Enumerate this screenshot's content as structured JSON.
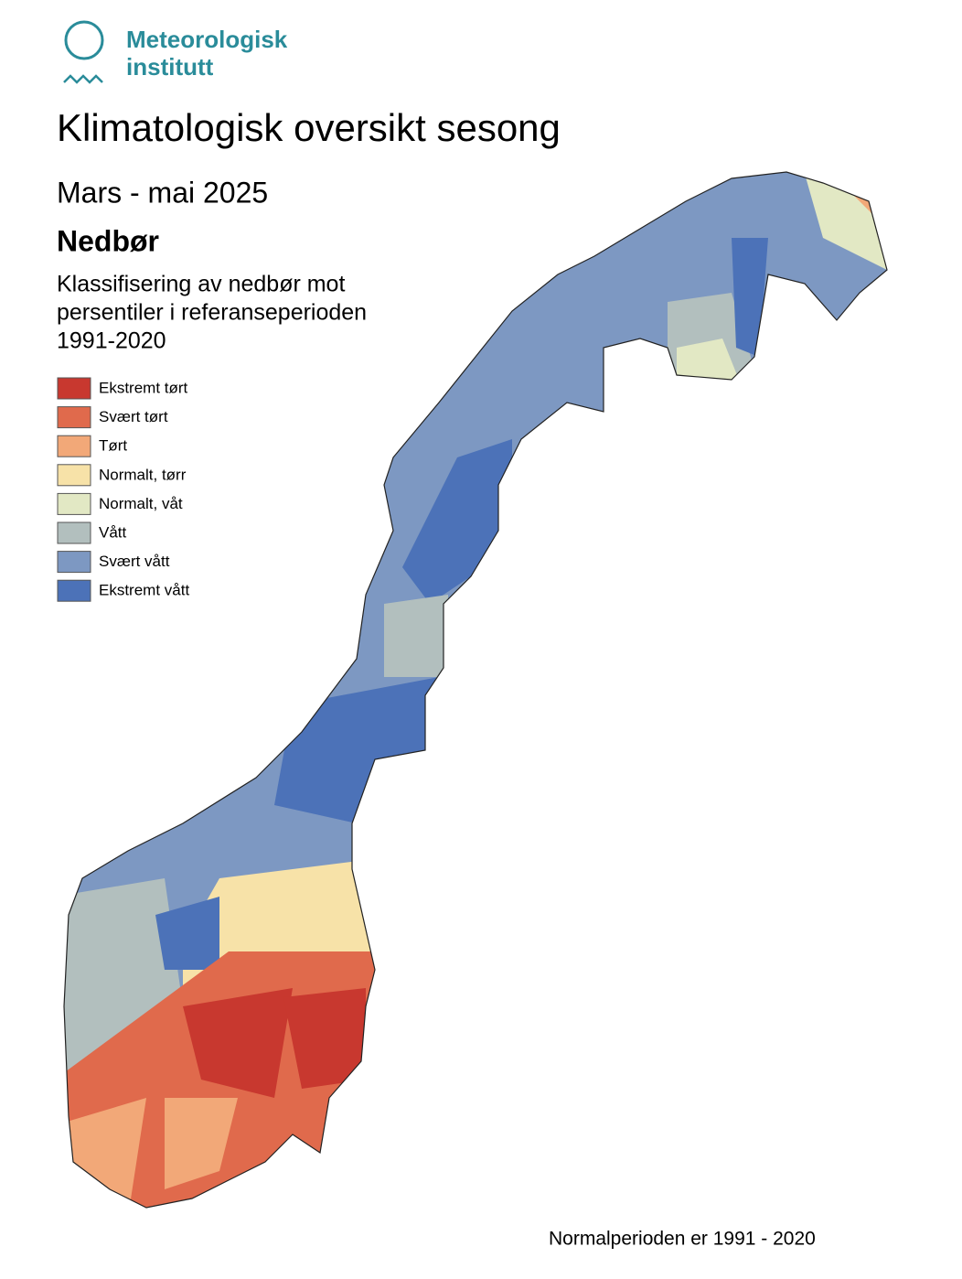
{
  "logo": {
    "line1": "Meteorologisk",
    "line2": "institutt"
  },
  "title": "Klimatologisk oversikt sesong",
  "period": "Mars - mai 2025",
  "variable": "Nedbør",
  "description": [
    "Klassifisering av nedbør mot",
    "persentiler i referanseperioden",
    "1991-2020"
  ],
  "legend": {
    "items": [
      {
        "label": "Ekstremt tørt",
        "color": "#c8382f"
      },
      {
        "label": "Svært tørt",
        "color": "#e06a4c"
      },
      {
        "label": "Tørt",
        "color": "#f2a878"
      },
      {
        "label": "Normalt, tørr",
        "color": "#f7e2a8"
      },
      {
        "label": "Normalt, våt",
        "color": "#e2e8c4"
      },
      {
        "label": "Vått",
        "color": "#b2bfbe"
      },
      {
        "label": "Svært vått",
        "color": "#7d98c2"
      },
      {
        "label": "Ekstremt vått",
        "color": "#4c72b8"
      }
    ]
  },
  "footer": "Normalperioden er 1991 - 2020"
}
